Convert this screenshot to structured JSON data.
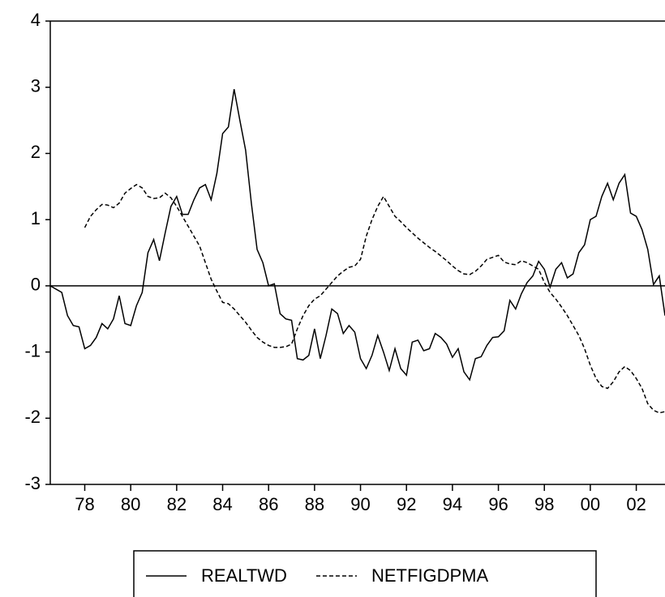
{
  "chart_data": {
    "type": "line",
    "x": [
      1976.5,
      1976.75,
      1977,
      1977.25,
      1977.5,
      1977.75,
      1978,
      1978.25,
      1978.5,
      1978.75,
      1979,
      1979.25,
      1979.5,
      1979.75,
      1980,
      1980.25,
      1980.5,
      1980.75,
      1981,
      1981.25,
      1981.5,
      1981.75,
      1982,
      1982.25,
      1982.5,
      1982.75,
      1983,
      1983.25,
      1983.5,
      1983.75,
      1984,
      1984.25,
      1984.5,
      1984.75,
      1985,
      1985.25,
      1985.5,
      1985.75,
      1986,
      1986.25,
      1986.5,
      1986.75,
      1987,
      1987.25,
      1987.5,
      1987.75,
      1988,
      1988.25,
      1988.5,
      1988.75,
      1989,
      1989.25,
      1989.5,
      1989.75,
      1990,
      1990.25,
      1990.5,
      1990.75,
      1991,
      1991.25,
      1991.5,
      1991.75,
      1992,
      1992.25,
      1992.5,
      1992.75,
      1993,
      1993.25,
      1993.5,
      1993.75,
      1994,
      1994.25,
      1994.5,
      1994.75,
      1995,
      1995.25,
      1995.5,
      1995.75,
      1996,
      1996.25,
      1996.5,
      1996.75,
      1997,
      1997.25,
      1997.5,
      1997.75,
      1998,
      1998.25,
      1998.5,
      1998.75,
      1999,
      1999.25,
      1999.5,
      1999.75,
      2000,
      2000.25,
      2000.5,
      2000.75,
      2001,
      2001.25,
      2001.5,
      2001.75,
      2002,
      2002.25,
      2002.5,
      2002.75,
      2003,
      2003.25
    ],
    "series": [
      {
        "name": "REALTWD",
        "color": "#000000",
        "line_style": "solid",
        "values": [
          0,
          -0.05,
          -0.1,
          -0.45,
          -0.6,
          -0.62,
          -0.95,
          -0.9,
          -0.78,
          -0.57,
          -0.65,
          -0.5,
          -0.15,
          -0.57,
          -0.6,
          -0.3,
          -0.1,
          0.5,
          0.7,
          0.38,
          0.8,
          1.2,
          1.35,
          1.08,
          1.08,
          1.3,
          1.48,
          1.53,
          1.3,
          1.7,
          2.3,
          2.4,
          2.97,
          2.5,
          2.05,
          1.25,
          0.55,
          0.35,
          0,
          0.03,
          -0.42,
          -0.5,
          -0.52,
          -1.1,
          -1.12,
          -1.05,
          -0.65,
          -1.1,
          -0.75,
          -0.35,
          -0.42,
          -0.72,
          -0.6,
          -0.7,
          -1.1,
          -1.25,
          -1.05,
          -0.75,
          -1.0,
          -1.28,
          -0.95,
          -1.25,
          -1.35,
          -0.85,
          -0.82,
          -0.98,
          -0.95,
          -0.72,
          -0.78,
          -0.88,
          -1.08,
          -0.95,
          -1.3,
          -1.42,
          -1.1,
          -1.07,
          -0.9,
          -0.78,
          -0.77,
          -0.68,
          -0.22,
          -0.35,
          -0.12,
          0.05,
          0.15,
          0.37,
          0.25,
          -0.02,
          0.25,
          0.35,
          0.12,
          0.18,
          0.5,
          0.62,
          1.0,
          1.05,
          1.35,
          1.55,
          1.3,
          1.55,
          1.68,
          1.1,
          1.05,
          0.85,
          0.55,
          0.02,
          0.15,
          -0.45
        ]
      },
      {
        "name": "NETFIGDPMA",
        "color": "#000000",
        "line_style": "dashed",
        "values": [
          null,
          null,
          null,
          null,
          null,
          null,
          0.88,
          1.05,
          1.15,
          1.23,
          1.22,
          1.18,
          1.25,
          1.4,
          1.47,
          1.53,
          1.48,
          1.35,
          1.32,
          1.33,
          1.4,
          1.33,
          1.2,
          1.05,
          0.9,
          0.75,
          0.6,
          0.35,
          0.1,
          -0.08,
          -0.25,
          -0.27,
          -0.35,
          -0.45,
          -0.55,
          -0.67,
          -0.78,
          -0.85,
          -0.9,
          -0.93,
          -0.93,
          -0.92,
          -0.88,
          -0.65,
          -0.45,
          -0.3,
          -0.2,
          -0.15,
          -0.05,
          0.05,
          0.15,
          0.22,
          0.28,
          0.3,
          0.4,
          0.75,
          1.0,
          1.2,
          1.35,
          1.2,
          1.05,
          0.97,
          0.88,
          0.8,
          0.72,
          0.65,
          0.58,
          0.52,
          0.45,
          0.38,
          0.3,
          0.23,
          0.18,
          0.17,
          0.22,
          0.3,
          0.4,
          0.43,
          0.46,
          0.36,
          0.33,
          0.32,
          0.38,
          0.35,
          0.3,
          0.25,
          0.05,
          -0.1,
          -0.2,
          -0.32,
          -0.45,
          -0.6,
          -0.75,
          -0.95,
          -1.2,
          -1.4,
          -1.52,
          -1.55,
          -1.45,
          -1.3,
          -1.22,
          -1.28,
          -1.4,
          -1.55,
          -1.78,
          -1.88,
          -1.92,
          -1.9
        ]
      }
    ],
    "xlim": [
      1976.5,
      2003.25
    ],
    "xticks": [
      {
        "value": 1978,
        "label": "78"
      },
      {
        "value": 1980,
        "label": "80"
      },
      {
        "value": 1982,
        "label": "82"
      },
      {
        "value": 1984,
        "label": "84"
      },
      {
        "value": 1986,
        "label": "86"
      },
      {
        "value": 1988,
        "label": "88"
      },
      {
        "value": 1990,
        "label": "90"
      },
      {
        "value": 1992,
        "label": "92"
      },
      {
        "value": 1994,
        "label": "94"
      },
      {
        "value": 1996,
        "label": "96"
      },
      {
        "value": 1998,
        "label": "98"
      },
      {
        "value": 2000,
        "label": "00"
      },
      {
        "value": 2002,
        "label": "02"
      }
    ],
    "ylim": [
      -3,
      4
    ],
    "yticks": [
      -3,
      -2,
      -1,
      0,
      1,
      2,
      3,
      4
    ],
    "zero_line": true,
    "legend": "bottom"
  }
}
